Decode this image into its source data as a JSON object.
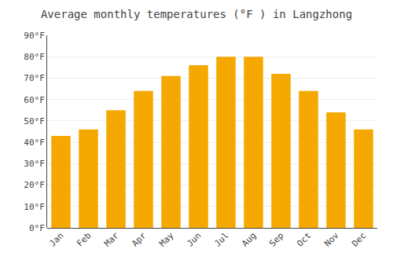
{
  "chart_data": {
    "type": "bar",
    "title": "Average monthly temperatures (°F ) in Langzhong",
    "categories": [
      "Jan",
      "Feb",
      "Mar",
      "Apr",
      "May",
      "Jun",
      "Jul",
      "Aug",
      "Sep",
      "Oct",
      "Nov",
      "Dec"
    ],
    "values": [
      43,
      46,
      55,
      64,
      71,
      76,
      80,
      80,
      72,
      64,
      54,
      46
    ],
    "color": "#F5A800",
    "ylim": [
      0,
      90
    ],
    "yticks": [
      {
        "value": 0,
        "label": "0°F"
      },
      {
        "value": 10,
        "label": "10°F"
      },
      {
        "value": 20,
        "label": "20°F"
      },
      {
        "value": 30,
        "label": "30°F"
      },
      {
        "value": 40,
        "label": "40°F"
      },
      {
        "value": 50,
        "label": "50°F"
      },
      {
        "value": 60,
        "label": "60°F"
      },
      {
        "value": 70,
        "label": "70°F"
      },
      {
        "value": 80,
        "label": "80°F"
      },
      {
        "value": 90,
        "label": "90°F"
      }
    ],
    "grid": true
  }
}
